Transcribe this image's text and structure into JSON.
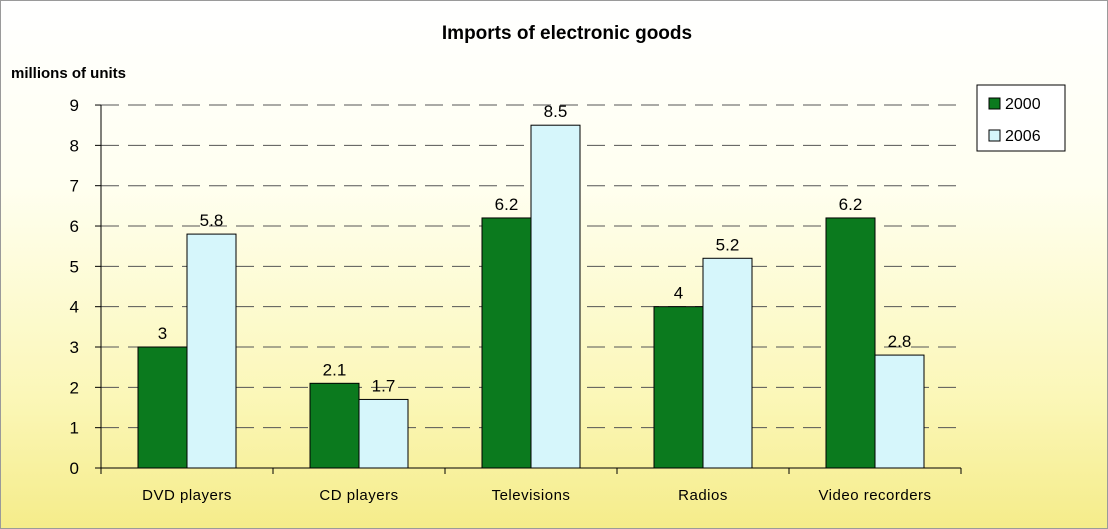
{
  "chart_data": {
    "type": "bar",
    "title": "Imports of electronic goods",
    "ylabel": "millions of units",
    "xlabel": "",
    "categories": [
      "DVD players",
      "CD players",
      "Televisions",
      "Radios",
      "Video recorders"
    ],
    "series": [
      {
        "name": "2000",
        "color": "#0b7a1e",
        "values": [
          3,
          2.1,
          6.2,
          4,
          6.2
        ]
      },
      {
        "name": "2006",
        "color": "#d6f6fb",
        "values": [
          5.8,
          1.7,
          8.5,
          5.2,
          2.8
        ]
      }
    ],
    "data_labels": [
      [
        "3",
        "2.1",
        "6.2",
        "4",
        "6.2"
      ],
      [
        "5.8",
        "1.7",
        "8.5",
        "5.2",
        "2.8"
      ]
    ],
    "ylim": [
      0,
      9
    ],
    "yticks": [
      "0",
      "1",
      "2",
      "3",
      "4",
      "5",
      "6",
      "7",
      "8",
      "9"
    ],
    "grid": "dashed horizontal",
    "legend_position": "right"
  }
}
